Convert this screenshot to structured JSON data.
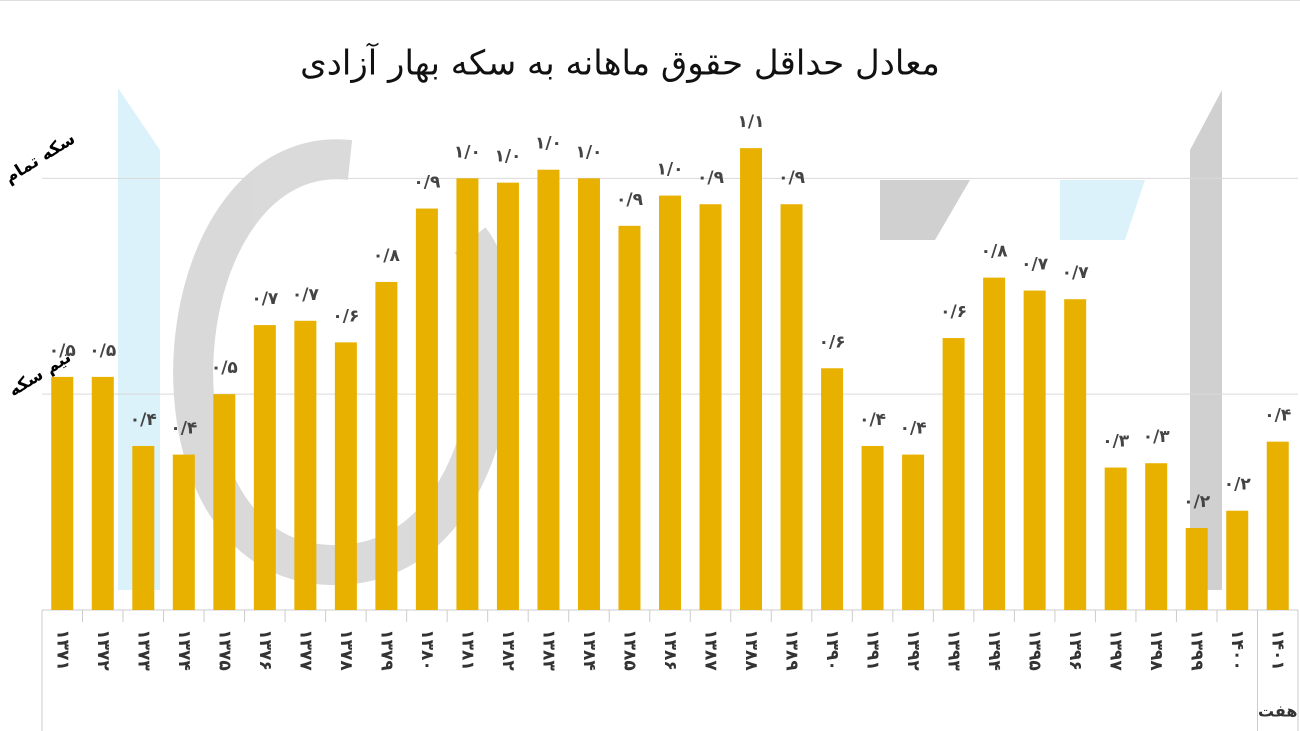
{
  "chart_data": {
    "type": "bar",
    "title": "معادل حداقل حقوق ماهانه به سکه بهار آزادی",
    "categories": [
      "۱۳۷۱",
      "۱۳۷۲",
      "۱۳۷۳",
      "۱۳۷۴",
      "۱۳۷۵",
      "۱۳۷۶",
      "۱۳۷۷",
      "۱۳۷۸",
      "۱۳۷۹",
      "۱۳۸۰",
      "۱۳۸۱",
      "۱۳۸۲",
      "۱۳۸۳",
      "۱۳۸۴",
      "۱۳۸۵",
      "۱۳۸۶",
      "۱۳۸۷",
      "۱۳۸۸",
      "۱۳۸۹",
      "۱۳۹۰",
      "۱۳۹۱",
      "۱۳۹۲",
      "۱۳۹۳",
      "۱۳۹۴",
      "۱۳۹۵",
      "۱۳۹۶",
      "۱۳۹۷",
      "۱۳۹۸",
      "۱۳۹۹",
      "۱۴۰۰",
      "۱۴۰۱"
    ],
    "values": [
      0.54,
      0.54,
      0.38,
      0.36,
      0.5,
      0.66,
      0.67,
      0.62,
      0.76,
      0.93,
      1.0,
      0.99,
      1.02,
      1.0,
      0.89,
      0.96,
      0.94,
      1.07,
      0.94,
      0.56,
      0.38,
      0.36,
      0.63,
      0.77,
      0.74,
      0.72,
      0.33,
      0.34,
      0.19,
      0.23,
      0.39
    ],
    "value_labels": [
      "۰/۵",
      "۰/۵",
      "۰/۴",
      "۰/۴",
      "۰/۵",
      "۰/۷",
      "۰/۷",
      "۰/۶",
      "۰/۸",
      "۰/۹",
      "۱/۰",
      "۱/۰",
      "۱/۰",
      "۱/۰",
      "۰/۹",
      "۱/۰",
      "۰/۹",
      "۱/۱",
      "۰/۹",
      "۰/۶",
      "۰/۴",
      "۰/۴",
      "۰/۶",
      "۰/۸",
      "۰/۷",
      "۰/۷",
      "۰/۳",
      "۰/۳",
      "۰/۲",
      "۰/۲",
      "۰/۴"
    ],
    "annotation": "هفت",
    "color": "#e8b100",
    "ylim": [
      0,
      1.2
    ],
    "yticks": [
      {
        "value": 0.5,
        "label": "نیم سکه"
      },
      {
        "value": 1,
        "label": "سکه تمام"
      }
    ],
    "grid": true
  }
}
